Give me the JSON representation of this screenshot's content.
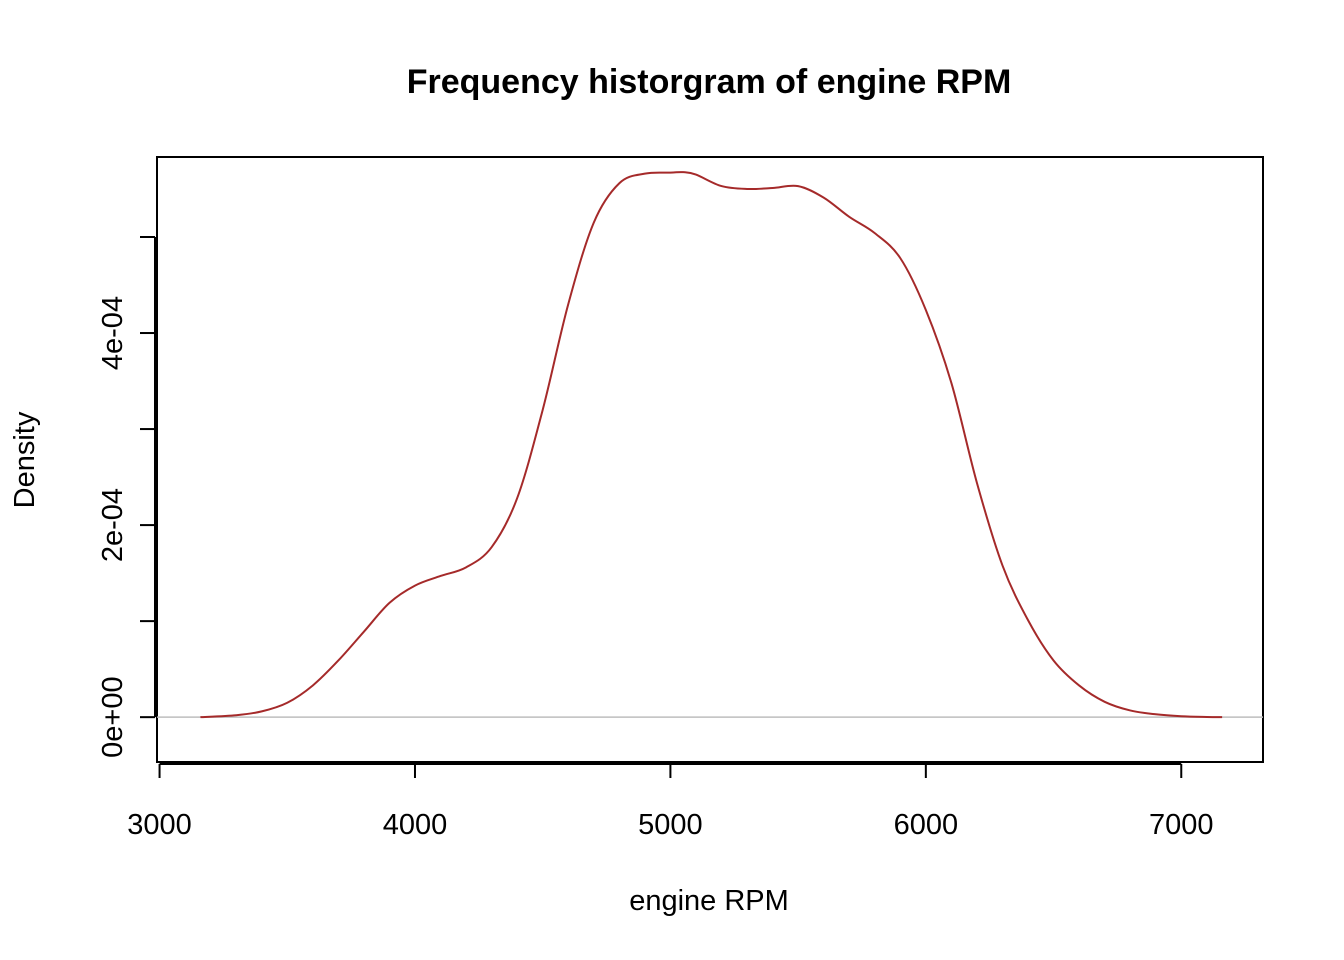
{
  "chart_data": {
    "type": "line",
    "title": "Frequency historgram of engine RPM",
    "xlabel": "engine RPM",
    "ylabel": "Density",
    "xlim": [
      2990,
      7320
    ],
    "ylim": [
      -4.67e-05,
      0.0005833
    ],
    "x_ticks": [
      3000,
      4000,
      5000,
      6000,
      7000
    ],
    "x_tick_labels": [
      "3000",
      "4000",
      "5000",
      "6000",
      "7000"
    ],
    "y_ticks": [
      0,
      0.0001,
      0.0002,
      0.0003,
      0.0004,
      0.0005
    ],
    "y_tick_labels": [
      "0e+00",
      "",
      "2e-04",
      "",
      "4e-04",
      ""
    ],
    "grid": false,
    "baseline": 0,
    "line_color": "#a52a2a",
    "baseline_color": "#bebebe",
    "series": [
      {
        "x": [
          3160,
          3300,
          3400,
          3500,
          3600,
          3700,
          3800,
          3900,
          4000,
          4100,
          4200,
          4300,
          4400,
          4500,
          4600,
          4700,
          4800,
          4900,
          5000,
          5050,
          5100,
          5200,
          5300,
          5400,
          5500,
          5600,
          5700,
          5800,
          5900,
          6000,
          6100,
          6200,
          6300,
          6400,
          6500,
          6600,
          6700,
          6800,
          6900,
          7000,
          7100,
          7160
        ],
        "y": [
          0.0,
          2e-06,
          6e-06,
          1.5e-05,
          3.3e-05,
          5.9e-05,
          8.9e-05,
          0.000119,
          0.000137,
          0.000147,
          0.000156,
          0.000177,
          0.000228,
          0.00032,
          0.00043,
          0.000515,
          0.000556,
          0.000566,
          0.000567,
          0.0005675,
          0.000565,
          0.000553,
          0.00055,
          0.000551,
          0.000553,
          0.000541,
          0.000521,
          0.000504,
          0.000478,
          0.000424,
          0.000348,
          0.000244,
          0.000158,
          0.000101,
          5.9e-05,
          3.3e-05,
          1.6e-05,
          7e-06,
          3e-06,
          1e-06,
          2e-07,
          0.0
        ]
      }
    ]
  }
}
